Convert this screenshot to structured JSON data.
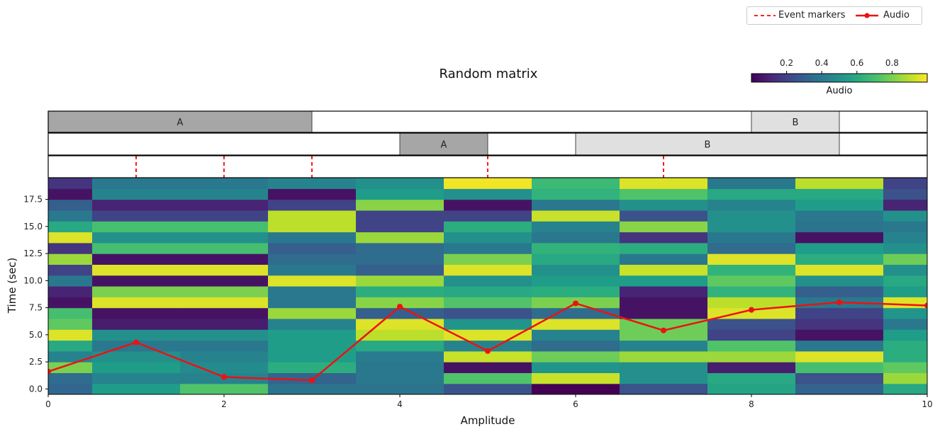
{
  "title": "Random matrix",
  "legend": [
    {
      "label": "Event markers",
      "color": "#ff0000",
      "style": "dashed"
    },
    {
      "label": "Audio",
      "color": "#ee1111",
      "style": "line-marker"
    }
  ],
  "colorbar": {
    "label": "Audio",
    "ticks": [
      "0.2",
      "0.4",
      "0.6",
      "0.8"
    ],
    "tick_values": [
      0.2,
      0.4,
      0.6,
      0.8
    ],
    "range": [
      0,
      1
    ],
    "colormap": "viridis"
  },
  "chart_data": {
    "type": "heatmap",
    "title": "Random matrix",
    "xlabel": "Amplitude",
    "ylabel": "Time (sec)",
    "xlim": [
      0,
      10
    ],
    "ylim": [
      -0.5,
      19.5
    ],
    "xticks": [
      "0",
      "2",
      "4",
      "6",
      "8",
      "10"
    ],
    "yticks": [
      "0.0",
      "2.5",
      "5.0",
      "7.5",
      "10.0",
      "12.5",
      "15.0",
      "17.5"
    ],
    "heatmap": {
      "x_centers": [
        0,
        1,
        2,
        3,
        4,
        5,
        6,
        7,
        8,
        9,
        10
      ],
      "y_centers": [
        0,
        1,
        2,
        3,
        4,
        5,
        6,
        7,
        8,
        9,
        10,
        11,
        12,
        13,
        14,
        15,
        16,
        17,
        18,
        19
      ],
      "values": [
        [
          0.33,
          0.55,
          0.72,
          0.38,
          0.38,
          0.26,
          0.0,
          0.25,
          0.58,
          0.32,
          0.6
        ],
        [
          0.35,
          0.45,
          0.45,
          0.32,
          0.4,
          0.72,
          0.92,
          0.5,
          0.6,
          0.25,
          0.85
        ],
        [
          0.8,
          0.55,
          0.48,
          0.62,
          0.4,
          0.05,
          0.52,
          0.5,
          0.08,
          0.7,
          0.75
        ],
        [
          0.45,
          0.5,
          0.45,
          0.55,
          0.42,
          0.92,
          0.78,
          0.85,
          0.85,
          0.95,
          0.62
        ],
        [
          0.6,
          0.4,
          0.4,
          0.55,
          0.6,
          0.45,
          0.35,
          0.45,
          0.72,
          0.4,
          0.62
        ],
        [
          0.95,
          0.5,
          0.5,
          0.55,
          0.9,
          0.95,
          0.45,
          0.78,
          0.2,
          0.05,
          0.55
        ],
        [
          0.75,
          0.08,
          0.08,
          0.45,
          0.95,
          0.52,
          0.95,
          0.78,
          0.25,
          0.15,
          0.4
        ],
        [
          0.7,
          0.05,
          0.05,
          0.85,
          0.3,
          0.25,
          0.35,
          0.05,
          0.95,
          0.2,
          0.52
        ],
        [
          0.05,
          0.95,
          0.95,
          0.4,
          0.82,
          0.72,
          0.8,
          0.05,
          0.9,
          0.4,
          0.95
        ],
        [
          0.1,
          0.8,
          0.8,
          0.4,
          0.62,
          0.6,
          0.62,
          0.1,
          0.65,
          0.3,
          0.55
        ],
        [
          0.4,
          0.05,
          0.05,
          0.95,
          0.85,
          0.5,
          0.55,
          0.55,
          0.75,
          0.5,
          0.6
        ],
        [
          0.2,
          0.95,
          0.95,
          0.4,
          0.3,
          0.95,
          0.5,
          0.92,
          0.65,
          0.95,
          0.5
        ],
        [
          0.85,
          0.05,
          0.05,
          0.35,
          0.35,
          0.8,
          0.6,
          0.4,
          0.95,
          0.62,
          0.78
        ],
        [
          0.15,
          0.7,
          0.7,
          0.3,
          0.35,
          0.4,
          0.65,
          0.62,
          0.35,
          0.55,
          0.5
        ],
        [
          0.95,
          0.5,
          0.5,
          0.4,
          0.85,
          0.5,
          0.4,
          0.15,
          0.4,
          0.05,
          0.45
        ],
        [
          0.6,
          0.7,
          0.7,
          0.9,
          0.2,
          0.62,
          0.45,
          0.82,
          0.5,
          0.38,
          0.4
        ],
        [
          0.4,
          0.2,
          0.2,
          0.9,
          0.2,
          0.2,
          0.92,
          0.25,
          0.5,
          0.4,
          0.5
        ],
        [
          0.3,
          0.1,
          0.1,
          0.2,
          0.82,
          0.05,
          0.4,
          0.5,
          0.45,
          0.55,
          0.1
        ],
        [
          0.05,
          0.45,
          0.45,
          0.05,
          0.55,
          0.5,
          0.65,
          0.72,
          0.6,
          0.6,
          0.25
        ],
        [
          0.15,
          0.4,
          0.4,
          0.45,
          0.5,
          0.98,
          0.68,
          0.95,
          0.4,
          0.9,
          0.2
        ]
      ]
    },
    "series": [
      {
        "name": "Audio",
        "x": [
          0,
          1,
          2,
          3,
          4,
          5,
          6,
          7,
          8,
          9,
          10
        ],
        "y": [
          1.6,
          4.3,
          1.1,
          0.8,
          7.6,
          3.5,
          7.9,
          5.4,
          7.3,
          8.0,
          7.7
        ]
      }
    ],
    "event_markers": [
      1,
      2,
      3,
      5,
      7
    ],
    "segment_tracks": [
      [
        {
          "start": 0,
          "end": 3,
          "label": "A",
          "color": "#a6a6a6"
        },
        {
          "start": 8,
          "end": 9,
          "label": "B",
          "color": "#e0e0e0"
        }
      ],
      [
        {
          "start": 4,
          "end": 5,
          "label": "A",
          "color": "#a6a6a6"
        },
        {
          "start": 6,
          "end": 9,
          "label": "B",
          "color": "#e0e0e0"
        }
      ]
    ]
  }
}
